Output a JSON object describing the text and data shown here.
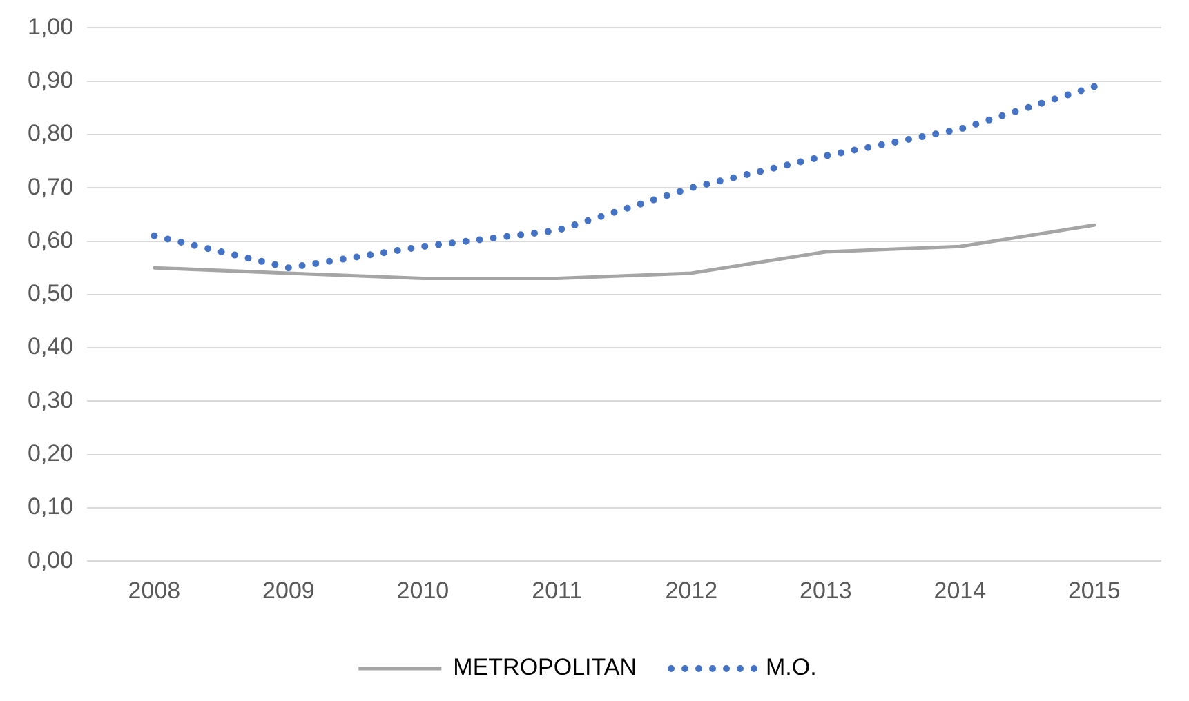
{
  "chart_data": {
    "type": "line",
    "categories": [
      "2008",
      "2009",
      "2010",
      "2011",
      "2012",
      "2013",
      "2014",
      "2015"
    ],
    "series": [
      {
        "name": "METROPOLITAN",
        "color": "#a5a5a5",
        "line_style": "solid",
        "values": [
          0.55,
          0.54,
          0.53,
          0.53,
          0.54,
          0.58,
          0.59,
          0.63
        ]
      },
      {
        "name": "M.O.",
        "color": "#4472c4",
        "line_style": "dotted",
        "values": [
          0.61,
          0.55,
          0.59,
          0.62,
          0.7,
          0.76,
          0.81,
          0.89
        ]
      }
    ],
    "ylim": [
      0,
      1
    ],
    "yticks": [
      {
        "value": 0,
        "label": "0,00"
      },
      {
        "value": 0.1,
        "label": "0,10"
      },
      {
        "value": 0.2,
        "label": "0,20"
      },
      {
        "value": 0.3,
        "label": "0,30"
      },
      {
        "value": 0.4,
        "label": "0,40"
      },
      {
        "value": 0.5,
        "label": "0,50"
      },
      {
        "value": 0.6,
        "label": "0,60"
      },
      {
        "value": 0.7,
        "label": "0,70"
      },
      {
        "value": 0.8,
        "label": "0,80"
      },
      {
        "value": 0.9,
        "label": "0,90"
      },
      {
        "value": 1,
        "label": "1,00"
      }
    ],
    "grid": "y",
    "legend": "bottom",
    "marker": "none"
  }
}
